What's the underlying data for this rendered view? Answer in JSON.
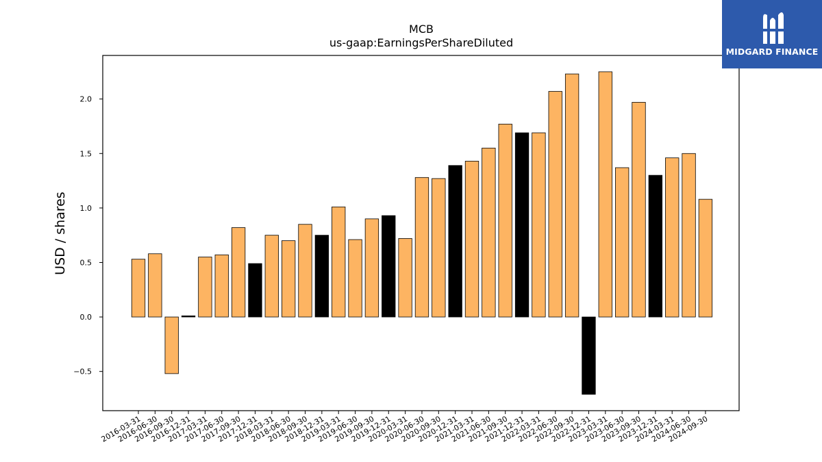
{
  "chart_data": {
    "type": "bar",
    "title": "MCB",
    "subtitle": "us-gaap:EarningsPerShareDiluted",
    "xlabel": "",
    "ylabel": "USD / shares",
    "ylim": [
      -0.86,
      2.4
    ],
    "yticks": [
      -0.5,
      0.0,
      0.5,
      1.0,
      1.5,
      2.0
    ],
    "ytick_labels": [
      "−0.5",
      "0.0",
      "0.5",
      "1.0",
      "1.5",
      "2.0"
    ],
    "grid": false,
    "categories": [
      "2016-03-31",
      "2016-06-30",
      "2016-09-30",
      "2016-12-31",
      "2017-03-31",
      "2017-06-30",
      "2017-09-30",
      "2017-12-31",
      "2018-03-31",
      "2018-06-30",
      "2018-09-30",
      "2018-12-31",
      "2019-03-31",
      "2019-06-30",
      "2019-09-30",
      "2019-12-31",
      "2020-03-31",
      "2020-06-30",
      "2020-09-30",
      "2020-12-31",
      "2021-03-31",
      "2021-06-30",
      "2021-09-30",
      "2021-12-31",
      "2022-03-31",
      "2022-06-30",
      "2022-09-30",
      "2022-12-31",
      "2023-03-31",
      "2023-06-30",
      "2023-09-30",
      "2023-12-31",
      "2024-03-31",
      "2024-06-30",
      "2024-09-30"
    ],
    "values": [
      0.53,
      0.58,
      -0.52,
      0.01,
      0.55,
      0.57,
      0.82,
      0.49,
      0.75,
      0.7,
      0.85,
      0.75,
      1.01,
      0.71,
      0.9,
      0.93,
      0.72,
      1.28,
      1.27,
      1.39,
      1.43,
      1.55,
      1.77,
      1.69,
      1.69,
      2.07,
      2.23,
      -0.71,
      2.25,
      1.37,
      1.97,
      1.3,
      1.46,
      1.5,
      1.08
    ],
    "highlight": [
      false,
      false,
      false,
      true,
      false,
      false,
      false,
      true,
      false,
      false,
      false,
      true,
      false,
      false,
      false,
      true,
      false,
      false,
      false,
      true,
      false,
      false,
      false,
      true,
      false,
      false,
      false,
      true,
      false,
      false,
      false,
      true,
      false,
      false,
      false
    ],
    "colors": {
      "bar": "#fdb462",
      "highlight": "#000000",
      "edge": "#000000"
    }
  },
  "logo": {
    "text": "MIDGARD FINANCE",
    "bg": "#2d5aac"
  }
}
